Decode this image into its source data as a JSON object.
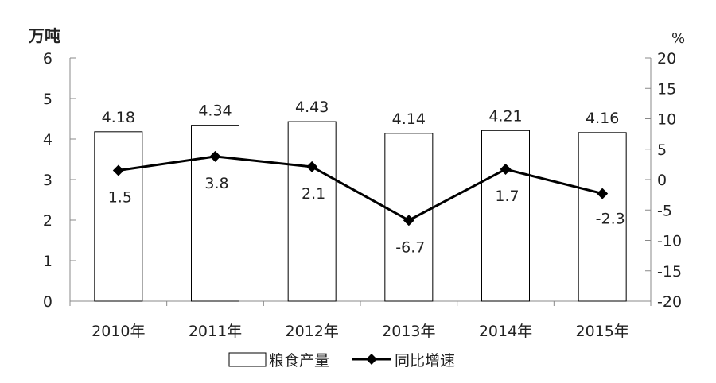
{
  "chart_data": {
    "type": "bar+line",
    "categories": [
      "2010年",
      "2011年",
      "2012年",
      "2013年",
      "2014年",
      "2015年"
    ],
    "series": [
      {
        "name": "粮食产量",
        "type": "bar",
        "axis": "left",
        "values": [
          4.18,
          4.34,
          4.43,
          4.14,
          4.21,
          4.16
        ]
      },
      {
        "name": "同比增速",
        "type": "line",
        "axis": "right",
        "values": [
          1.5,
          3.8,
          2.1,
          -6.7,
          1.7,
          -2.3
        ]
      }
    ],
    "ylabel_left": "万吨",
    "ylabel_right": "%",
    "ylim_left": [
      0,
      6
    ],
    "yticks_left": [
      0,
      1,
      2,
      3,
      4,
      5,
      6
    ],
    "ylim_right": [
      -20,
      20
    ],
    "yticks_right": [
      -20,
      -15,
      -10,
      -5,
      0,
      5,
      10,
      15,
      20
    ],
    "grid": false,
    "legend": "bottom",
    "colors": {
      "bar_fill": "#ffffff",
      "bar_stroke": "#000000",
      "line": "#000000"
    }
  }
}
